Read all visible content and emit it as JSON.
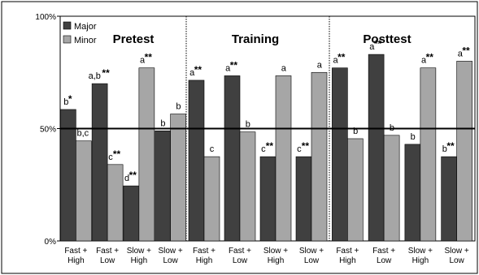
{
  "chart_data": {
    "type": "bar",
    "y_ticks": [
      "0%",
      "50%",
      "100%"
    ],
    "ylim": [
      0,
      100
    ],
    "reference_line": 50,
    "grid": false,
    "legend": {
      "placement": "top-left",
      "entries": [
        {
          "name": "Major",
          "color": "#404040"
        },
        {
          "name": "Minor",
          "color": "#a6a6a6"
        }
      ]
    },
    "panels": [
      {
        "title": "Pretest",
        "categories": [
          {
            "label": [
              "Fast +",
              "High"
            ],
            "major": 58.5,
            "minor": 44.5,
            "major_note": {
              "letters": "b",
              "stars": "*"
            },
            "minor_note": {
              "letters": "b,c",
              "stars": ""
            }
          },
          {
            "label": [
              "Fast +",
              "Low"
            ],
            "major": 70,
            "minor": 34,
            "major_note": {
              "letters": "a,b",
              "stars": "**"
            },
            "minor_note": {
              "letters": "c",
              "stars": "**"
            }
          },
          {
            "label": [
              "Slow +",
              "High"
            ],
            "major": 24.5,
            "minor": 77,
            "major_note": {
              "letters": "d",
              "stars": "**"
            },
            "minor_note": {
              "letters": "a",
              "stars": "**"
            }
          },
          {
            "label": [
              "Slow +",
              "Low"
            ],
            "major": 49,
            "minor": 56.5,
            "major_note": {
              "letters": "b",
              "stars": ""
            },
            "minor_note": {
              "letters": "b",
              "stars": ""
            }
          }
        ]
      },
      {
        "title": "Training",
        "categories": [
          {
            "label": [
              "Fast +",
              "High"
            ],
            "major": 71.5,
            "minor": 37.5,
            "major_note": {
              "letters": "a",
              "stars": "**"
            },
            "minor_note": {
              "letters": "c",
              "stars": ""
            }
          },
          {
            "label": [
              "Fast +",
              "Low"
            ],
            "major": 73.5,
            "minor": 48.5,
            "major_note": {
              "letters": "a",
              "stars": "**"
            },
            "minor_note": {
              "letters": "b",
              "stars": ""
            }
          },
          {
            "label": [
              "Slow +",
              "High"
            ],
            "major": 37.5,
            "minor": 73.5,
            "major_note": {
              "letters": "c",
              "stars": "**"
            },
            "minor_note": {
              "letters": "a",
              "stars": ""
            }
          },
          {
            "label": [
              "Slow +",
              "Low"
            ],
            "major": 37.5,
            "minor": 75,
            "major_note": {
              "letters": "c",
              "stars": "**"
            },
            "minor_note": {
              "letters": "a",
              "stars": ""
            }
          }
        ]
      },
      {
        "title": "Posttest",
        "categories": [
          {
            "label": [
              "Fast +",
              "High"
            ],
            "major": 77,
            "minor": 45.5,
            "major_note": {
              "letters": "a",
              "stars": "**"
            },
            "minor_note": {
              "letters": "b",
              "stars": ""
            }
          },
          {
            "label": [
              "Fast +",
              "Low"
            ],
            "major": 83,
            "minor": 47,
            "major_note": {
              "letters": "a",
              "stars": "**"
            },
            "minor_note": {
              "letters": "b",
              "stars": ""
            }
          },
          {
            "label": [
              "Slow +",
              "High"
            ],
            "major": 43,
            "minor": 77,
            "major_note": {
              "letters": "b",
              "stars": ""
            },
            "minor_note": {
              "letters": "a",
              "stars": "**"
            }
          },
          {
            "label": [
              "Slow +",
              "Low"
            ],
            "major": 37.5,
            "minor": 80,
            "major_note": {
              "letters": "b",
              "stars": "**"
            },
            "minor_note": {
              "letters": "a",
              "stars": "**"
            }
          }
        ]
      }
    ]
  }
}
